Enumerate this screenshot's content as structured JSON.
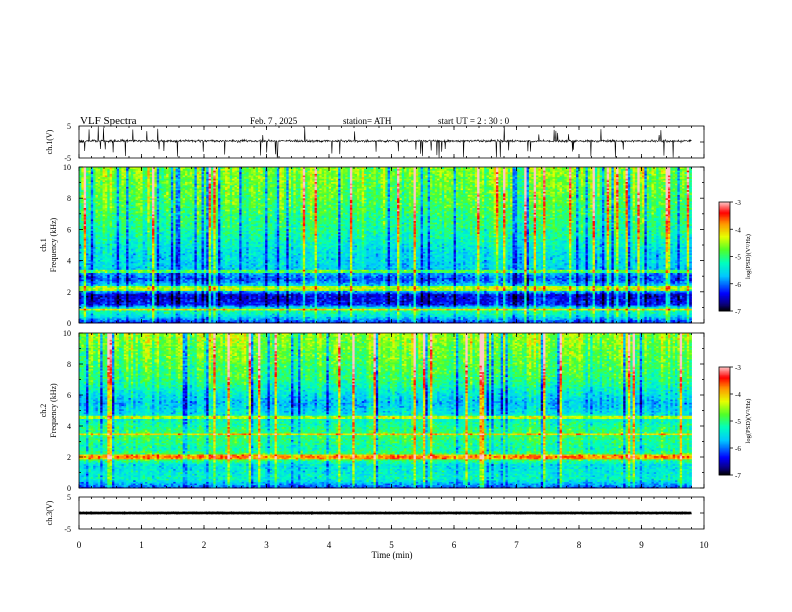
{
  "header": {
    "title": "VLF  Spectra",
    "date": "Feb. 7  , 2025",
    "station": "station= ATH",
    "start": "start  UT  =   2  : 30 : 0"
  },
  "chart_data": {
    "type": "heatmap",
    "title": "VLF  Spectra",
    "xlabel": "Time  (min)",
    "xlim": [
      0,
      10
    ],
    "xticks": [
      "0",
      "1",
      "2",
      "3",
      "4",
      "5",
      "6",
      "7",
      "8",
      "9",
      "10"
    ],
    "data_end_min": 9.8,
    "panels": [
      {
        "id": "ch1_wave",
        "type": "line",
        "ylabel": "ch.1(V)",
        "ylim": [
          -5,
          5
        ],
        "yticks": [
          "5",
          "-5"
        ],
        "baseline_v": 0.3,
        "noise_v": 1.0
      },
      {
        "id": "ch1_spec",
        "type": "heatmap",
        "ylabel_top": "ch.1",
        "ylabel": "Frequency  (kHz)",
        "ylim": [
          0,
          10
        ],
        "yticks": [
          "0",
          "2",
          "4",
          "6",
          "8",
          "10"
        ],
        "colorbar_label": "log(PSD)(V²/Hz)",
        "colorbar_range": [
          -7,
          -3
        ],
        "colorbar_ticks": [
          "-3",
          "-4",
          "-5",
          "-6",
          "-7"
        ],
        "profile": [
          {
            "f": 0.0,
            "level": -6.3
          },
          {
            "f": 0.5,
            "level": -5.4
          },
          {
            "f": 0.9,
            "level": -5.0
          },
          {
            "f": 1.2,
            "level": -6.3
          },
          {
            "f": 1.8,
            "level": -6.5
          },
          {
            "f": 2.2,
            "level": -5.2
          },
          {
            "f": 2.8,
            "level": -6.1
          },
          {
            "f": 3.5,
            "level": -5.6
          },
          {
            "f": 4.5,
            "level": -5.5
          },
          {
            "f": 6.0,
            "level": -5.1
          },
          {
            "f": 8.0,
            "level": -4.8
          },
          {
            "f": 10.0,
            "level": -4.6
          }
        ],
        "lines_khz": [
          0.9,
          2.2,
          2.35,
          3.35
        ]
      },
      {
        "id": "ch2_spec",
        "type": "heatmap",
        "ylabel_top": "ch.2",
        "ylabel": "Frequency  (kHz)",
        "ylim": [
          0,
          10
        ],
        "yticks": [
          "0",
          "2",
          "4",
          "6",
          "8",
          "10"
        ],
        "colorbar_label": "log(PSD)(V²/Hz)",
        "colorbar_range": [
          -7,
          -3
        ],
        "colorbar_ticks": [
          "-3",
          "-4",
          "-5",
          "-6",
          "-7"
        ],
        "profile": [
          {
            "f": 0.0,
            "level": -6.2
          },
          {
            "f": 0.6,
            "level": -5.3
          },
          {
            "f": 1.5,
            "level": -5.5
          },
          {
            "f": 2.0,
            "level": -4.6
          },
          {
            "f": 2.5,
            "level": -5.2
          },
          {
            "f": 3.5,
            "level": -4.9
          },
          {
            "f": 4.5,
            "level": -5.3
          },
          {
            "f": 5.5,
            "level": -5.7
          },
          {
            "f": 7.0,
            "level": -5.0
          },
          {
            "f": 10.0,
            "level": -4.5
          }
        ],
        "lines_khz": [
          1.95,
          2.1,
          3.5,
          4.6
        ]
      },
      {
        "id": "ch3_wave",
        "type": "line",
        "ylabel": "ch.3(V)",
        "ylim": [
          -5,
          5
        ],
        "yticks": [
          "5",
          "-5"
        ],
        "baseline_v": 0.0,
        "noise_v": 0.15
      }
    ]
  }
}
